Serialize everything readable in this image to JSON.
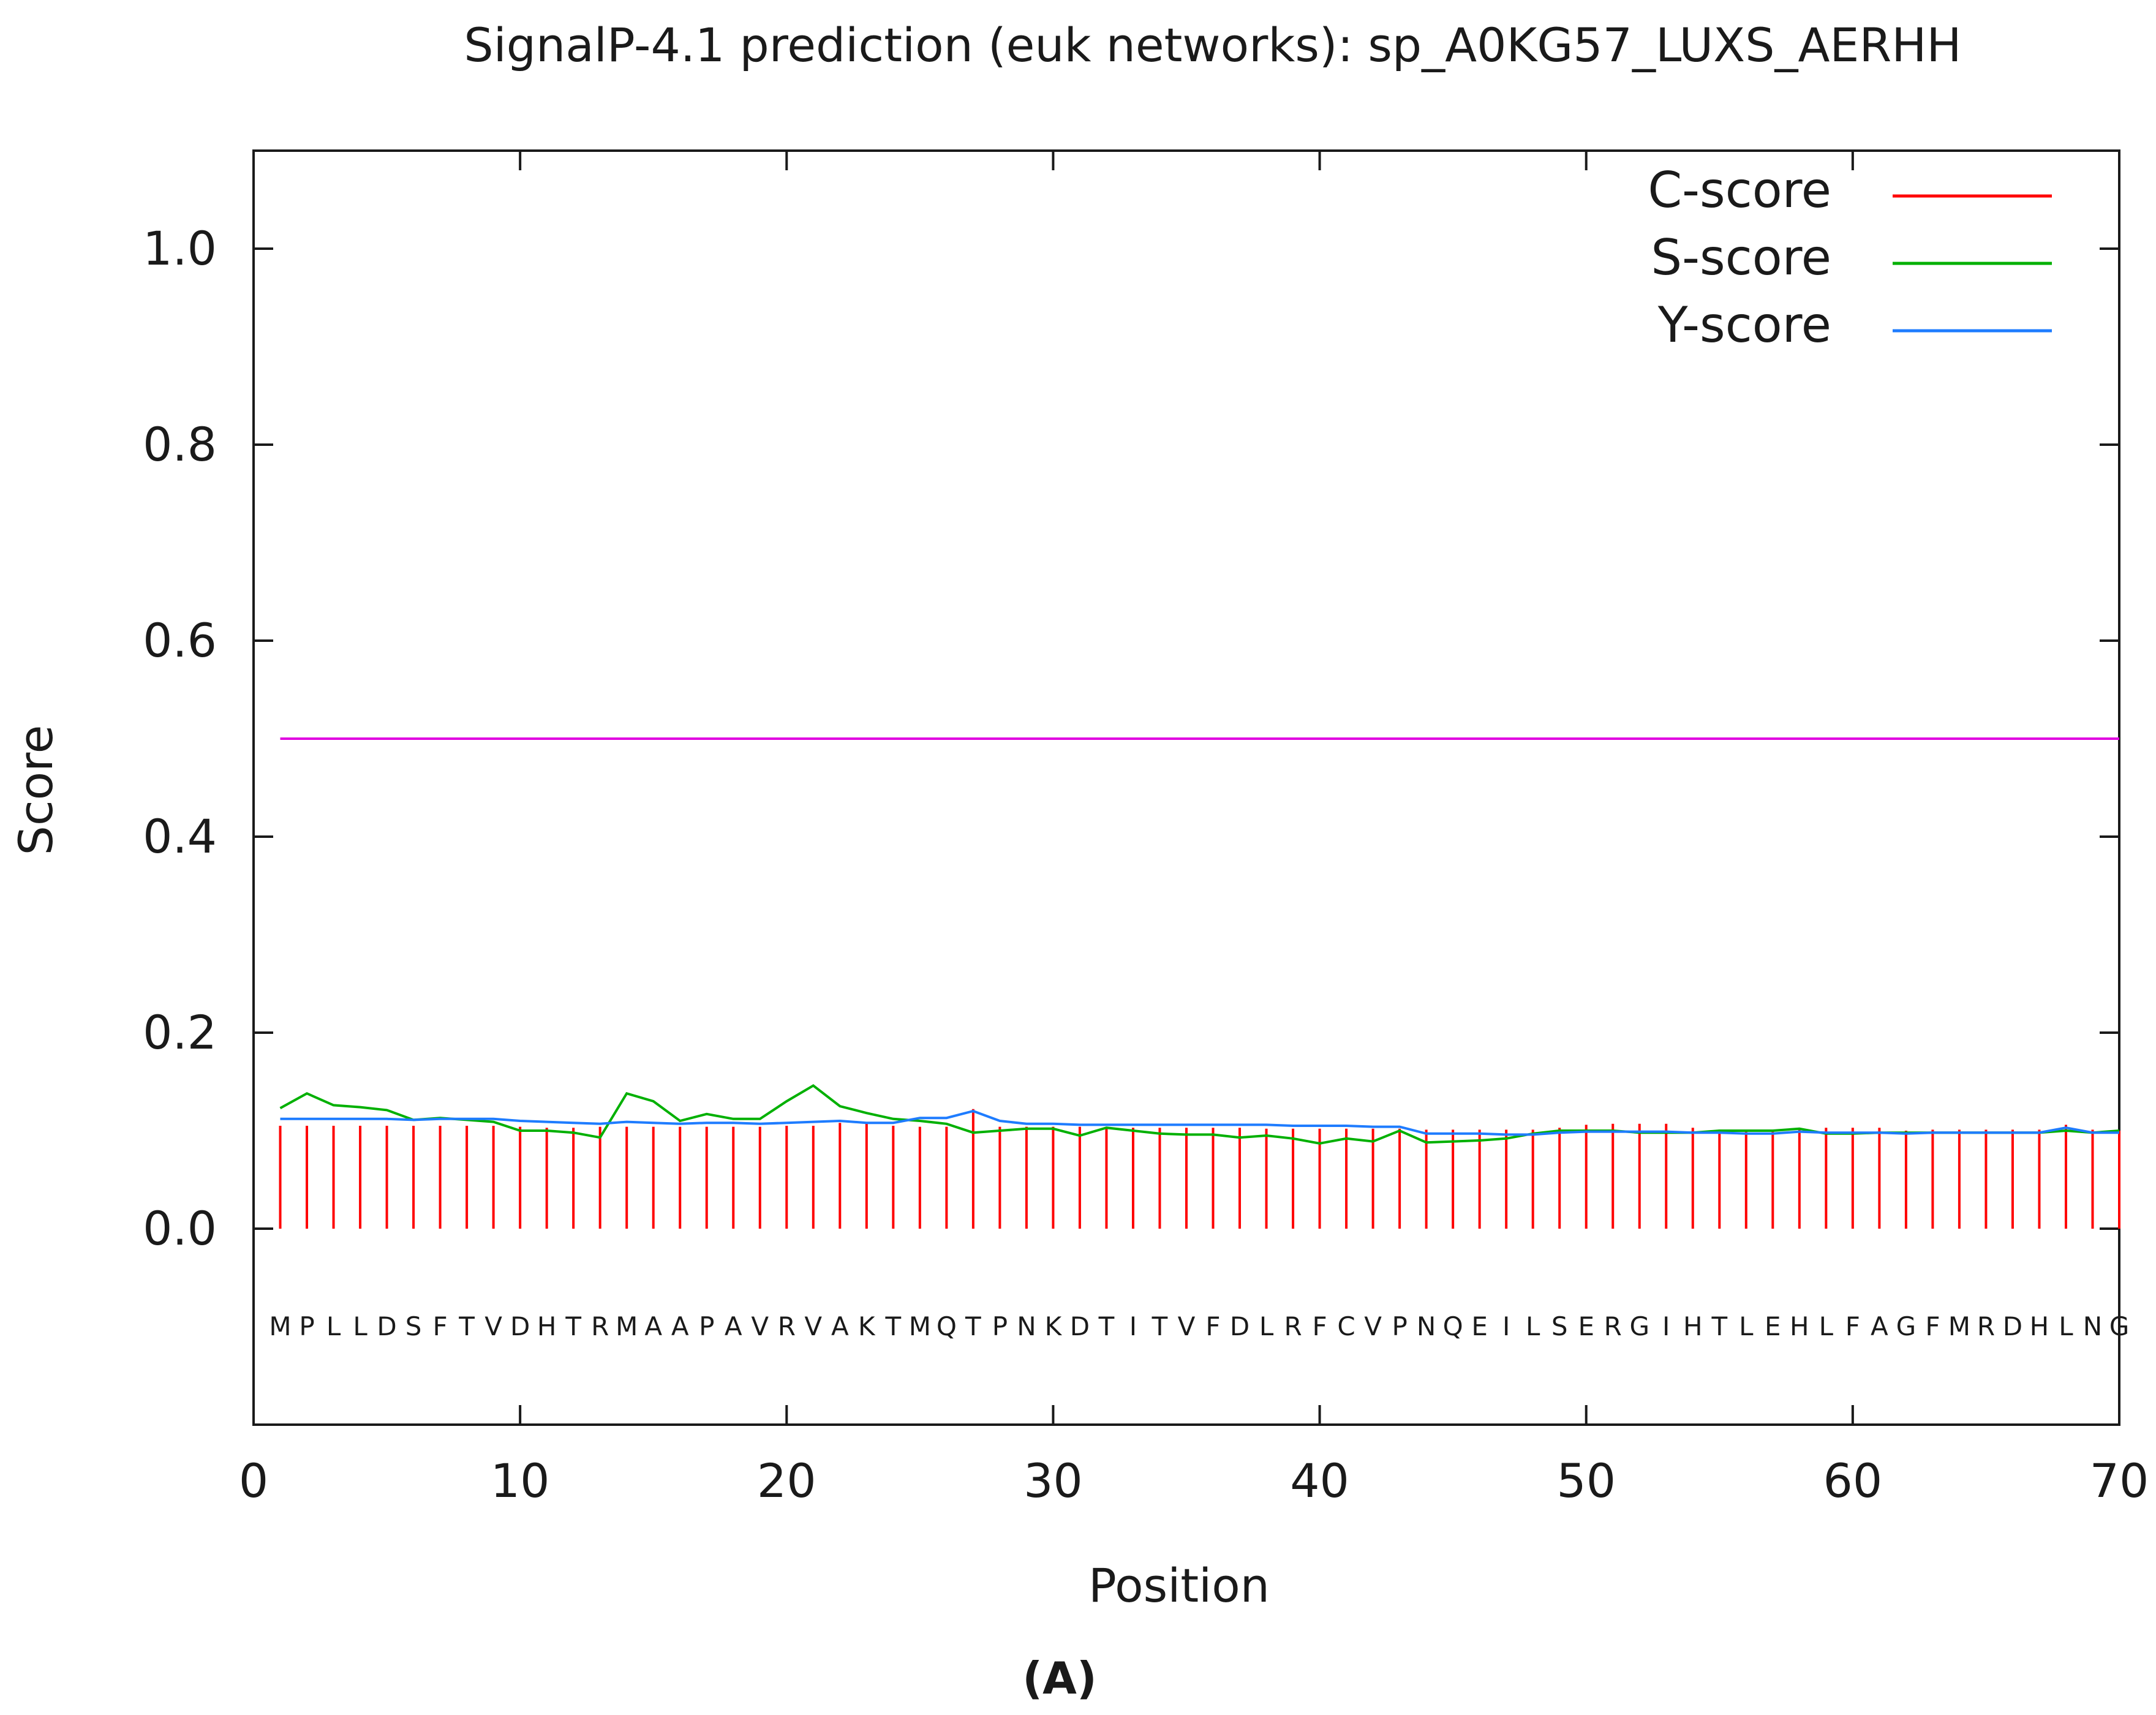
{
  "chart_data": {
    "type": "line",
    "title": "SignalP-4.1 prediction (euk networks): sp_A0KG57_LUXS_AERHH",
    "xlabel": "Position",
    "ylabel": "Score",
    "xlim": [
      0,
      70
    ],
    "ylim": [
      -0.2,
      1.1
    ],
    "x_ticks": [
      0,
      10,
      20,
      30,
      40,
      50,
      60,
      70
    ],
    "x_tick_labels": [
      "0",
      "10",
      "20",
      "30",
      "40",
      "50",
      "60",
      "70"
    ],
    "y_ticks": [
      0.0,
      0.2,
      0.4,
      0.6,
      0.8,
      1.0
    ],
    "y_tick_labels": [
      "0.0",
      "0.2",
      "0.4",
      "0.6",
      "0.8",
      "1.0"
    ],
    "grid": false,
    "legend_position": "top-right",
    "threshold": 0.5,
    "sequence": [
      "M",
      "P",
      "L",
      "L",
      "D",
      "S",
      "F",
      "T",
      "V",
      "D",
      "H",
      "T",
      "R",
      "M",
      "A",
      "A",
      "P",
      "A",
      "V",
      "R",
      "V",
      "A",
      "K",
      "T",
      "M",
      "Q",
      "T",
      "P",
      "N",
      "K",
      "D",
      "T",
      "I",
      "T",
      "V",
      "F",
      "D",
      "L",
      "R",
      "F",
      "C",
      "V",
      "P",
      "N",
      "Q",
      "E",
      "I",
      "L",
      "S",
      "E",
      "R",
      "G",
      "I",
      "H",
      "T",
      "L",
      "E",
      "H",
      "L",
      "F",
      "A",
      "G",
      "F",
      "M",
      "R",
      "D",
      "H",
      "L",
      "N",
      "G"
    ],
    "series": [
      {
        "name": "C-score",
        "color": "#ff0000",
        "style": "impulses",
        "values": [
          0.105,
          0.105,
          0.105,
          0.105,
          0.105,
          0.105,
          0.105,
          0.105,
          0.105,
          0.104,
          0.103,
          0.103,
          0.104,
          0.104,
          0.104,
          0.104,
          0.104,
          0.104,
          0.104,
          0.105,
          0.105,
          0.108,
          0.108,
          0.105,
          0.104,
          0.104,
          0.122,
          0.104,
          0.104,
          0.104,
          0.104,
          0.103,
          0.103,
          0.103,
          0.103,
          0.103,
          0.103,
          0.102,
          0.102,
          0.102,
          0.102,
          0.102,
          0.102,
          0.101,
          0.101,
          0.101,
          0.101,
          0.101,
          0.103,
          0.106,
          0.107,
          0.107,
          0.107,
          0.103,
          0.101,
          0.101,
          0.101,
          0.103,
          0.103,
          0.103,
          0.103,
          0.1,
          0.101,
          0.101,
          0.101,
          0.101,
          0.101,
          0.106,
          0.101,
          0.1
        ]
      },
      {
        "name": "S-score",
        "color": "#00b000",
        "style": "line",
        "values": [
          0.123,
          0.138,
          0.126,
          0.124,
          0.121,
          0.111,
          0.113,
          0.111,
          0.109,
          0.1,
          0.1,
          0.098,
          0.093,
          0.138,
          0.13,
          0.11,
          0.117,
          0.112,
          0.112,
          0.13,
          0.146,
          0.125,
          0.118,
          0.112,
          0.11,
          0.107,
          0.098,
          0.1,
          0.102,
          0.102,
          0.095,
          0.103,
          0.1,
          0.097,
          0.096,
          0.096,
          0.093,
          0.095,
          0.092,
          0.087,
          0.092,
          0.089,
          0.1,
          0.088,
          0.089,
          0.09,
          0.092,
          0.097,
          0.1,
          0.1,
          0.1,
          0.098,
          0.098,
          0.098,
          0.1,
          0.1,
          0.1,
          0.102,
          0.097,
          0.097,
          0.098,
          0.098,
          0.098,
          0.098,
          0.098,
          0.098,
          0.098,
          0.1,
          0.098,
          0.1
        ]
      },
      {
        "name": "Y-score",
        "color": "#1e7cff",
        "style": "line",
        "values": [
          0.112,
          0.112,
          0.112,
          0.112,
          0.112,
          0.111,
          0.112,
          0.112,
          0.112,
          0.11,
          0.109,
          0.108,
          0.107,
          0.109,
          0.108,
          0.107,
          0.108,
          0.108,
          0.107,
          0.108,
          0.109,
          0.11,
          0.108,
          0.108,
          0.113,
          0.113,
          0.12,
          0.11,
          0.107,
          0.107,
          0.106,
          0.106,
          0.106,
          0.106,
          0.106,
          0.106,
          0.106,
          0.106,
          0.105,
          0.105,
          0.105,
          0.104,
          0.104,
          0.097,
          0.097,
          0.097,
          0.096,
          0.096,
          0.098,
          0.099,
          0.099,
          0.099,
          0.099,
          0.098,
          0.098,
          0.097,
          0.097,
          0.099,
          0.098,
          0.098,
          0.098,
          0.097,
          0.098,
          0.098,
          0.098,
          0.098,
          0.098,
          0.103,
          0.098,
          0.098
        ]
      }
    ]
  },
  "caption": "(A)"
}
